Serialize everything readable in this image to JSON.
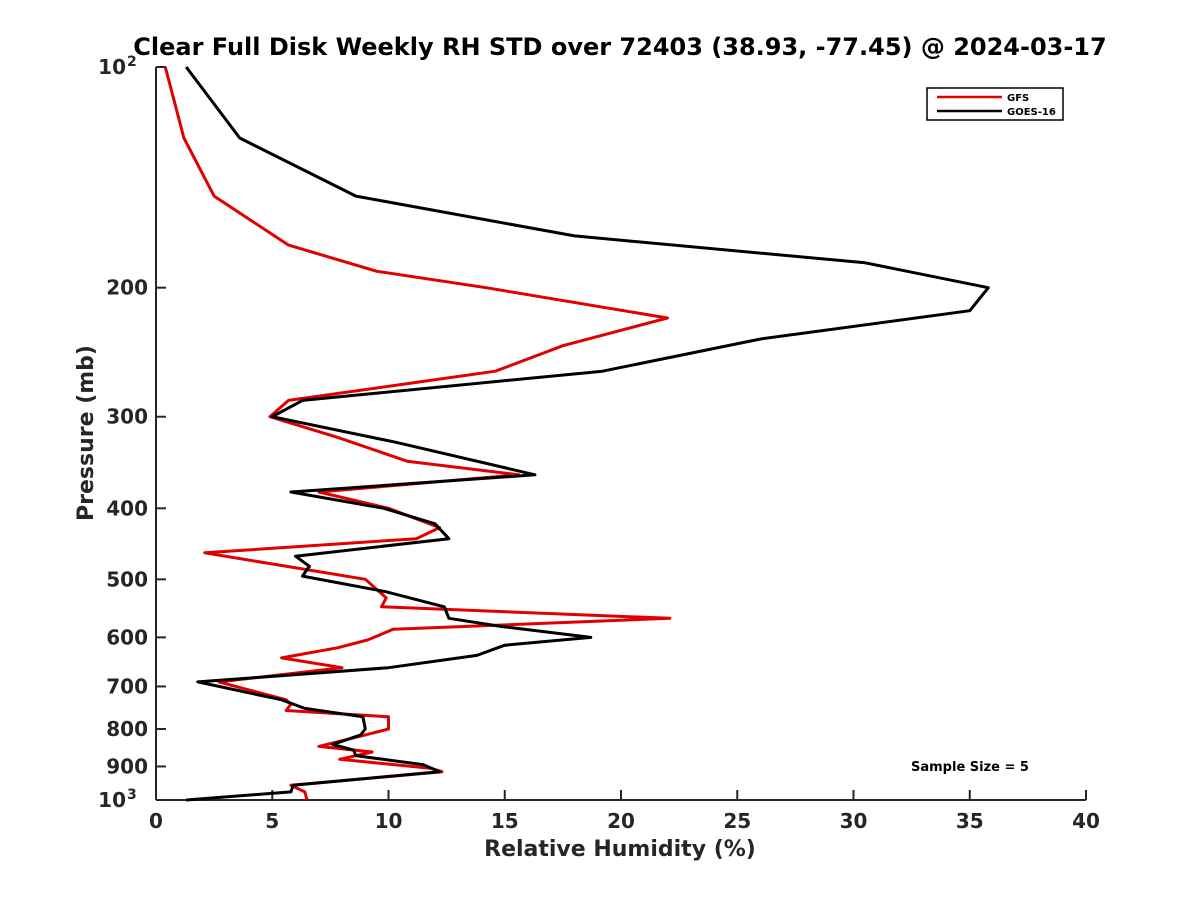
{
  "chart_data": {
    "type": "line",
    "title": "Clear Full Disk Weekly RH STD over 72403 (38.93, -77.45) @ 2024-03-17",
    "xlabel": "Relative Humidity (%)",
    "ylabel": "Pressure (mb)",
    "xlim": [
      0,
      40
    ],
    "ylim": [
      100,
      1000
    ],
    "y_scale": "log",
    "y_reversed": true,
    "x_ticks": [
      0,
      5,
      10,
      15,
      20,
      25,
      30,
      35,
      40
    ],
    "x_tick_labels": [
      "0",
      "5",
      "10",
      "15",
      "20",
      "25",
      "30",
      "35",
      "40"
    ],
    "y_ticks": [
      100,
      200,
      300,
      400,
      500,
      600,
      700,
      800,
      900,
      1000
    ],
    "y_tick_labels": [
      {
        "base": "10",
        "exp": "2"
      },
      {
        "base": "200",
        "exp": ""
      },
      {
        "base": "300",
        "exp": ""
      },
      {
        "base": "400",
        "exp": ""
      },
      {
        "base": "500",
        "exp": ""
      },
      {
        "base": "600",
        "exp": ""
      },
      {
        "base": "700",
        "exp": ""
      },
      {
        "base": "800",
        "exp": ""
      },
      {
        "base": "900",
        "exp": ""
      },
      {
        "base": "10",
        "exp": "3"
      }
    ],
    "grid": false,
    "legend_position": "top-right",
    "annotation": "Sample Size = 5",
    "series": [
      {
        "name": "GFS",
        "color": "#e00000",
        "points": [
          [
            0.4,
            100
          ],
          [
            1.2,
            125
          ],
          [
            2.5,
            150
          ],
          [
            5.7,
            175
          ],
          [
            9.5,
            190
          ],
          [
            14.2,
            200
          ],
          [
            22.0,
            220
          ],
          [
            17.5,
            240
          ],
          [
            14.6,
            260
          ],
          [
            5.7,
            285
          ],
          [
            4.9,
            300
          ],
          [
            7.8,
            320
          ],
          [
            10.8,
            345
          ],
          [
            15.6,
            360
          ],
          [
            7.0,
            380
          ],
          [
            10.0,
            400
          ],
          [
            12.2,
            425
          ],
          [
            11.2,
            440
          ],
          [
            2.1,
            460
          ],
          [
            9.0,
            500
          ],
          [
            9.9,
            530
          ],
          [
            9.7,
            545
          ],
          [
            22.1,
            565
          ],
          [
            10.2,
            585
          ],
          [
            9.1,
            605
          ],
          [
            7.8,
            620
          ],
          [
            5.4,
            640
          ],
          [
            8.0,
            660
          ],
          [
            2.7,
            690
          ],
          [
            5.6,
            730
          ],
          [
            5.8,
            740
          ],
          [
            5.6,
            755
          ],
          [
            10.0,
            770
          ],
          [
            10.0,
            800
          ],
          [
            9.0,
            815
          ],
          [
            7.0,
            845
          ],
          [
            9.3,
            860
          ],
          [
            7.9,
            880
          ],
          [
            11.8,
            905
          ],
          [
            12.3,
            915
          ],
          [
            5.8,
            955
          ],
          [
            6.4,
            975
          ],
          [
            6.5,
            1000
          ]
        ]
      },
      {
        "name": "GOES-16",
        "color": "#000000",
        "points": [
          [
            1.3,
            100
          ],
          [
            3.6,
            125
          ],
          [
            8.6,
            150
          ],
          [
            18.0,
            170
          ],
          [
            30.5,
            185
          ],
          [
            35.8,
            200
          ],
          [
            35.0,
            215
          ],
          [
            26.0,
            235
          ],
          [
            19.2,
            260
          ],
          [
            6.3,
            285
          ],
          [
            5.0,
            300
          ],
          [
            10.3,
            325
          ],
          [
            16.3,
            360
          ],
          [
            5.8,
            380
          ],
          [
            9.8,
            400
          ],
          [
            12.0,
            420
          ],
          [
            12.6,
            440
          ],
          [
            6.0,
            465
          ],
          [
            6.6,
            480
          ],
          [
            6.3,
            495
          ],
          [
            9.9,
            520
          ],
          [
            12.4,
            545
          ],
          [
            12.6,
            565
          ],
          [
            14.9,
            580
          ],
          [
            18.7,
            600
          ],
          [
            15.0,
            615
          ],
          [
            13.8,
            635
          ],
          [
            10.0,
            660
          ],
          [
            1.8,
            690
          ],
          [
            5.4,
            730
          ],
          [
            6.4,
            750
          ],
          [
            8.9,
            770
          ],
          [
            9.0,
            800
          ],
          [
            8.8,
            815
          ],
          [
            7.6,
            840
          ],
          [
            8.5,
            855
          ],
          [
            8.6,
            870
          ],
          [
            11.5,
            895
          ],
          [
            12.2,
            915
          ],
          [
            5.9,
            955
          ],
          [
            5.8,
            975
          ],
          [
            1.3,
            1000
          ]
        ]
      }
    ]
  }
}
